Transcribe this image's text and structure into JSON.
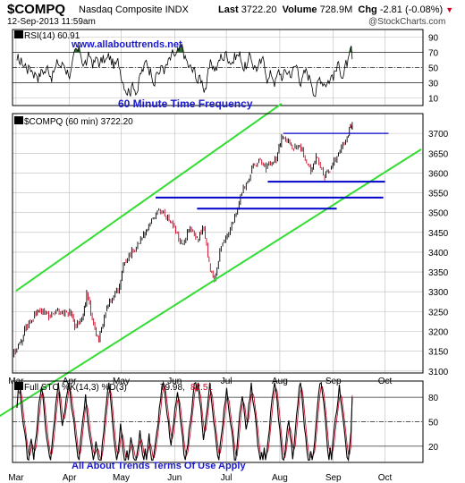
{
  "header": {
    "symbol": "$COMPQ",
    "name": "Nasdaq Composite INDX",
    "datetime": "12-Sep-2013 11:59am",
    "watermark": "@StockCharts.com",
    "last_label": "Last",
    "last_value": "3722.20",
    "volume_label": "Volume",
    "volume_value": "728.9M",
    "chg_label": "Chg",
    "chg_value": "-2.81 (-0.08%)",
    "chg_arrow_icon": "down-triangle-icon"
  },
  "colors": {
    "price_up": "#000000",
    "price_down": "#c8001e",
    "channel": "#33dd33",
    "support": "#0000cc",
    "annotation": "#1a1acc",
    "rsi_fill": "#2e6b2e",
    "grid": "#bdbdbd"
  },
  "chart_data": [
    {
      "type": "line",
      "panel": "RSI",
      "title": "RSI(14) 60.91",
      "series": [
        {
          "name": "RSI(14)",
          "current": 60.91
        }
      ],
      "yticks": [
        10,
        30,
        50,
        70,
        90
      ],
      "ylim": [
        0,
        100
      ],
      "reference_lines": [
        70,
        50,
        30
      ],
      "annotations": [
        "www.allabouttrends.net",
        "60 Minute Time Frequency"
      ]
    },
    {
      "type": "candlestick",
      "panel": "Price",
      "title": "$COMPQ (60 min) 3722.20",
      "x": [
        "Feb 27",
        "Mar 4",
        "Mar 6",
        "Mar 11",
        "Mar 15",
        "Mar 20",
        "Mar 26",
        "Apr 2",
        "Apr 4",
        "Apr 9",
        "Apr 11",
        "Apr 15",
        "Apr 18",
        "Apr 22",
        "Apr 25",
        "Apr 30",
        "May 3",
        "May 8",
        "May 14",
        "May 17",
        "May 22",
        "May 28",
        "May 31",
        "Jun 5",
        "Jun 10",
        "Jun 14",
        "Jun 18",
        "Jun 21",
        "Jun 24",
        "Jun 28",
        "Jul 5",
        "Jul 10",
        "Jul 15",
        "Jul 19",
        "Jul 24",
        "Jul 30",
        "Aug 2",
        "Aug 6",
        "Aug 9",
        "Aug 14",
        "Aug 19",
        "Aug 22",
        "Aug 27",
        "Aug 30",
        "Sep 4",
        "Sep 9",
        "Sep 11",
        "Sep 12"
      ],
      "y": [
        3140,
        3170,
        3205,
        3235,
        3255,
        3240,
        3250,
        3245,
        3215,
        3240,
        3295,
        3220,
        3175,
        3255,
        3275,
        3310,
        3380,
        3405,
        3440,
        3465,
        3505,
        3490,
        3470,
        3420,
        3460,
        3430,
        3465,
        3370,
        3330,
        3415,
        3475,
        3550,
        3600,
        3630,
        3615,
        3635,
        3690,
        3680,
        3665,
        3660,
        3605,
        3640,
        3590,
        3610,
        3650,
        3690,
        3720,
        3722.2
      ],
      "yticks": [
        3100,
        3150,
        3200,
        3250,
        3300,
        3350,
        3400,
        3450,
        3500,
        3550,
        3600,
        3650,
        3700
      ],
      "ylim": [
        3095,
        3750
      ],
      "xticks": [
        "Mar",
        "Apr",
        "May",
        "Jun",
        "Jul",
        "Aug",
        "Sep",
        "Oct"
      ],
      "channel_lines": [
        {
          "from": [
            "Mar 1",
            3302
          ],
          "to": [
            "Aug 2",
            3775
          ]
        },
        {
          "from": [
            "Feb 1",
            2935
          ],
          "to": [
            "Oct 22",
            3660
          ]
        }
      ],
      "support_lines": [
        {
          "from": [
            "Jun 14",
            3510
          ],
          "to": [
            "Sep 3",
            3510
          ]
        },
        {
          "from": [
            "May 21",
            3538
          ],
          "to": [
            "Sep 30",
            3538
          ]
        },
        {
          "from": [
            "Jul 25",
            3578
          ],
          "to": [
            "Oct 1",
            3578
          ]
        },
        {
          "from": [
            "Aug 3",
            3700
          ],
          "to": [
            "Oct 3",
            3700
          ]
        }
      ]
    },
    {
      "type": "line",
      "panel": "Stochastic",
      "title": "Full STO %K(14,3) %D(3) 79.98, 82.51",
      "series": [
        {
          "name": "%K(14,3)",
          "current": 79.98
        },
        {
          "name": "%D(3)",
          "current": 82.51
        }
      ],
      "yticks": [
        20,
        50,
        80
      ],
      "ylim": [
        0,
        100
      ],
      "reference_lines": [
        80,
        50,
        20
      ],
      "xticks": [
        "Mar",
        "Apr",
        "May",
        "Jun",
        "Jul",
        "Aug",
        "Sep",
        "Oct"
      ],
      "annotations": [
        "All About Trends Terms Of Use Apply"
      ]
    }
  ]
}
